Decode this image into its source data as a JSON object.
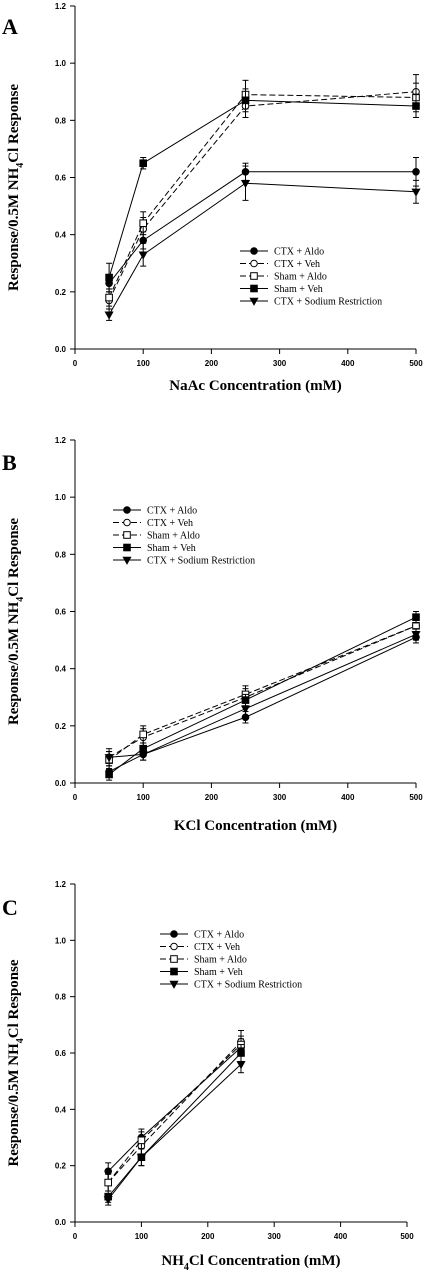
{
  "chart_data": [
    {
      "panel": "A",
      "type": "line",
      "xlabel": "NaAc Concentration (mM)",
      "ylabel": "Response/0.5M NH4Cl Response",
      "ylabel_main": "Response/0.5M NH",
      "ylabel_sub": "4",
      "ylabel_tail": "Cl Response",
      "xlim": [
        0,
        500
      ],
      "ylim": [
        0.0,
        1.2
      ],
      "xticks": [
        "0",
        "100",
        "200",
        "300",
        "400",
        "500"
      ],
      "yticks": [
        "0.0",
        "0.2",
        "0.4",
        "0.6",
        "0.8",
        "1.0",
        "1.2"
      ],
      "x": [
        50,
        100,
        250,
        500
      ],
      "legend_position": "middle-right",
      "series": [
        {
          "name": "CTX + Aldo",
          "values": [
            0.23,
            0.38,
            0.62,
            0.62
          ],
          "err": [
            0.02,
            0.03,
            0.03,
            0.05
          ]
        },
        {
          "name": "CTX + Veh",
          "values": [
            0.17,
            0.42,
            0.85,
            0.9
          ],
          "err": [
            0.03,
            0.04,
            0.04,
            0.06
          ]
        },
        {
          "name": "Sham + Aldo",
          "values": [
            0.18,
            0.44,
            0.89,
            0.88
          ],
          "err": [
            0.03,
            0.04,
            0.05,
            0.05
          ]
        },
        {
          "name": "Sham + Veh",
          "values": [
            0.25,
            0.65,
            0.87,
            0.85
          ],
          "err": [
            0.05,
            0.02,
            0.04,
            0.04
          ]
        },
        {
          "name": "CTX + Sodium Restriction",
          "values": [
            0.12,
            0.33,
            0.58,
            0.55
          ],
          "err": [
            0.02,
            0.04,
            0.06,
            0.04
          ]
        }
      ]
    },
    {
      "panel": "B",
      "type": "line",
      "xlabel": "KCl Concentration (mM)",
      "ylabel": "Response/0.5M NH4Cl Response",
      "ylabel_main": "Response/0.5M NH",
      "ylabel_sub": "4",
      "ylabel_tail": "Cl Response",
      "xlim": [
        0,
        500
      ],
      "ylim": [
        0.0,
        1.2
      ],
      "xticks": [
        "0",
        "100",
        "200",
        "300",
        "400",
        "500"
      ],
      "yticks": [
        "0.0",
        "0.2",
        "0.4",
        "0.6",
        "0.8",
        "1.0",
        "1.2"
      ],
      "x": [
        50,
        100,
        250,
        500
      ],
      "legend_position": "upper-left",
      "series": [
        {
          "name": "CTX + Aldo",
          "values": [
            0.04,
            0.1,
            0.23,
            0.51
          ],
          "err": [
            0.02,
            0.02,
            0.02,
            0.02
          ]
        },
        {
          "name": "CTX + Veh",
          "values": [
            0.09,
            0.16,
            0.3,
            0.55
          ],
          "err": [
            0.03,
            0.03,
            0.03,
            0.02
          ]
        },
        {
          "name": "Sham + Aldo",
          "values": [
            0.08,
            0.17,
            0.31,
            0.55
          ],
          "err": [
            0.03,
            0.03,
            0.03,
            0.02
          ]
        },
        {
          "name": "Sham + Veh",
          "values": [
            0.03,
            0.12,
            0.29,
            0.58
          ],
          "err": [
            0.02,
            0.02,
            0.02,
            0.02
          ]
        },
        {
          "name": "CTX + Sodium Restriction",
          "values": [
            0.09,
            0.1,
            0.26,
            0.52
          ],
          "err": [
            0.02,
            0.02,
            0.03,
            0.02
          ]
        }
      ]
    },
    {
      "panel": "C",
      "type": "line",
      "xlabel": "NH4Cl Concentration (mM)",
      "xlabel_main": "NH",
      "xlabel_sub": "4",
      "xlabel_tail": "Cl Concentration (mM)",
      "ylabel": "Response/0.5M NH4Cl Response",
      "ylabel_main": "Response/0.5M NH",
      "ylabel_sub": "4",
      "ylabel_tail": "Cl Response",
      "xlim": [
        0,
        500
      ],
      "ylim": [
        0.0,
        1.2
      ],
      "xticks": [
        "0",
        "100",
        "200",
        "300",
        "400",
        "500"
      ],
      "yticks": [
        "0.0",
        "0.2",
        "0.4",
        "0.6",
        "0.8",
        "1.0",
        "1.2"
      ],
      "x": [
        50,
        100,
        250
      ],
      "legend_position": "upper-middle",
      "series": [
        {
          "name": "CTX + Aldo",
          "values": [
            0.18,
            0.3,
            0.62
          ],
          "err": [
            0.03,
            0.03,
            0.03
          ]
        },
        {
          "name": "CTX + Veh",
          "values": [
            0.14,
            0.27,
            0.64
          ],
          "err": [
            0.03,
            0.03,
            0.04
          ]
        },
        {
          "name": "Sham + Aldo",
          "values": [
            0.14,
            0.29,
            0.63
          ],
          "err": [
            0.03,
            0.03,
            0.03
          ]
        },
        {
          "name": "Sham + Veh",
          "values": [
            0.09,
            0.23,
            0.6
          ],
          "err": [
            0.02,
            0.03,
            0.03
          ]
        },
        {
          "name": "CTX + Sodium Restriction",
          "values": [
            0.08,
            0.23,
            0.56
          ],
          "err": [
            0.02,
            0.03,
            0.03
          ]
        }
      ]
    }
  ],
  "series_styles": [
    {
      "marker": "circle-filled",
      "dash": "solid"
    },
    {
      "marker": "circle-open",
      "dash": "dashed"
    },
    {
      "marker": "square-open",
      "dash": "dashed"
    },
    {
      "marker": "square-filled",
      "dash": "solid"
    },
    {
      "marker": "triangle-down-filled",
      "dash": "solid"
    }
  ]
}
